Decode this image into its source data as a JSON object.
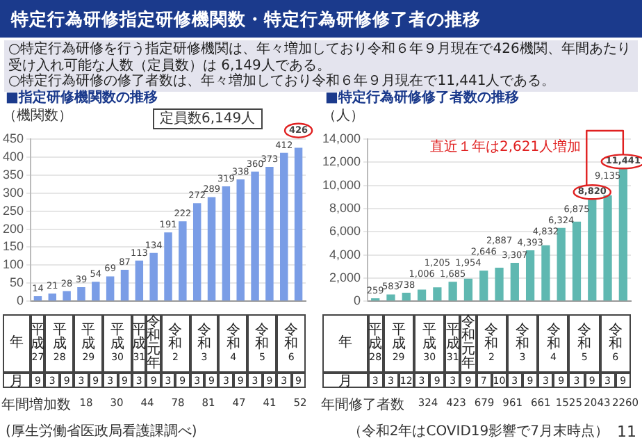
{
  "chart_data": [
    {
      "type": "bar",
      "title": "■指定研修機関数の推移",
      "ylabel": "（機関数）",
      "color": "#7a9de6",
      "data_labels": true,
      "tick_labels": "y",
      "grid": "y",
      "ylim": [
        0,
        450
      ],
      "yticks": [
        {
          "value": 0,
          "label": "0"
        },
        {
          "value": 50,
          "label": "50"
        },
        {
          "value": 100,
          "label": "100"
        },
        {
          "value": 150,
          "label": "150"
        },
        {
          "value": 200,
          "label": "200"
        },
        {
          "value": 250,
          "label": "250"
        },
        {
          "value": 300,
          "label": "300"
        },
        {
          "value": 350,
          "label": "350"
        },
        {
          "value": 400,
          "label": "400"
        },
        {
          "value": 450,
          "label": "450"
        }
      ],
      "categories": [
        "9",
        "3",
        "9",
        "3",
        "9",
        "3",
        "9",
        "3",
        "9",
        "3",
        "9",
        "3",
        "9",
        "3",
        "9",
        "3",
        "9",
        "3",
        "9"
      ],
      "values": [
        14,
        21,
        28,
        39,
        54,
        69,
        87,
        113,
        134,
        191,
        222,
        272,
        289,
        319,
        338,
        360,
        373,
        412,
        426
      ],
      "annotations": [
        "定員数6,149人",
        "年",
        "月",
        "年間増加数",
        "18",
        "30",
        "44",
        "78",
        "81",
        "47",
        "41",
        "52",
        "(厚生労働省医政局看護課調べ)",
        "平成27",
        "平成28",
        "平成29",
        "平成30",
        "平成31",
        "令和元年",
        "令和2",
        "令和3",
        "令和4",
        "令和5",
        "令和6",
        "特定行為研修指定研修機関数・特定行為研修修了者の推移",
        "○特定行為研修を行う指定研修機関は、年々増加しており令和６年９月現在で426機関、年間あたり受け入れ可能な人数（定員数）は 6,149人である。",
        "○特定行為研修の修了者数は、年々増加しており令和６年９月現在で11,441人である。",
        "11"
      ]
    },
    {
      "type": "bar",
      "title": "■特定行為研修修了者数の推移",
      "ylabel": "（人）",
      "color": "#5fb8b1",
      "tick_labels": "y",
      "grid": "y",
      "ylim": [
        0,
        14000
      ],
      "yticks": [
        {
          "value": 0,
          "label": "0"
        },
        {
          "value": 2000,
          "label": "2,000"
        },
        {
          "value": 4000,
          "label": "4,000"
        },
        {
          "value": 6000,
          "label": "6,000"
        },
        {
          "value": 8000,
          "label": "8,000"
        },
        {
          "value": 10000,
          "label": "10,000"
        },
        {
          "value": 12000,
          "label": "12,000"
        },
        {
          "value": 14000,
          "label": "14,000"
        }
      ],
      "categories": [
        "3",
        "3",
        "12",
        "3",
        "9",
        "3",
        "9",
        "7",
        "10",
        "3",
        "9",
        "3",
        "9",
        "3",
        "9",
        "3",
        "9"
      ],
      "values": [
        259,
        583,
        738,
        1006,
        1205,
        1685,
        1954,
        2646,
        2887,
        3307,
        4393,
        4832,
        6324,
        6875,
        8820,
        9135,
        11441
      ],
      "value_labels": [
        "259",
        "583",
        "738",
        "1,006",
        "1,205",
        "1,685",
        "1,954",
        "2,646",
        "2,887",
        "3,307",
        "4,393",
        "4,832",
        "6,324",
        "6,875",
        "8,820",
        "9,135",
        "11,441"
      ],
      "annotations": [
        "直近１年は2,621人増加",
        "年",
        "月",
        "年間修了者数",
        "324",
        "423",
        "679",
        "961",
        "661",
        "1525",
        "2043",
        "2260",
        "（令和2年はCOVID19影響で7月末時点）",
        "平成28",
        "平成29",
        "平成30",
        "平成31",
        "令和元年",
        "令和2",
        "令和3",
        "令和4",
        "令和5",
        "令和6"
      ]
    }
  ]
}
